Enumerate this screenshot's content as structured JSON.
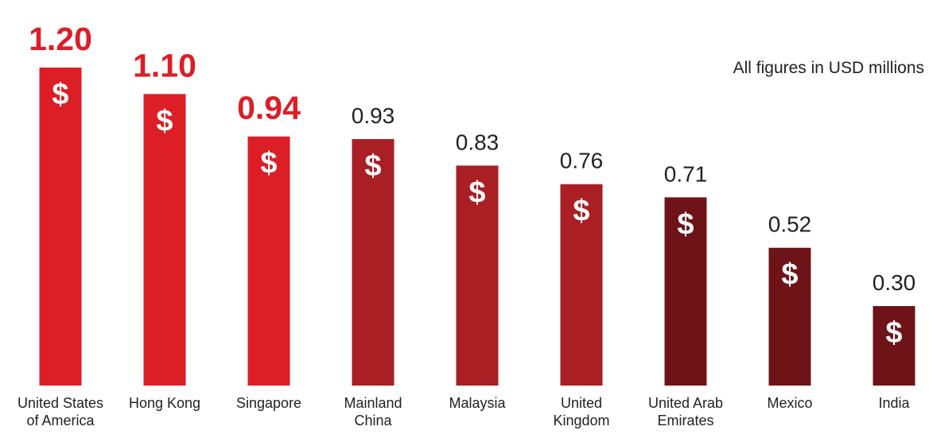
{
  "chart_data": {
    "type": "bar",
    "categories": [
      [
        "United States",
        "of America"
      ],
      [
        "Hong Kong"
      ],
      [
        "Singapore"
      ],
      [
        "Mainland",
        "China"
      ],
      [
        "Malaysia"
      ],
      [
        "United",
        "Kingdom"
      ],
      [
        "United Arab",
        "Emirates"
      ],
      [
        "Mexico"
      ],
      [
        "India"
      ]
    ],
    "values": [
      1.2,
      1.1,
      0.94,
      0.93,
      0.83,
      0.76,
      0.71,
      0.52,
      0.3
    ],
    "value_labels": [
      "1.20",
      "1.10",
      "0.94",
      "0.93",
      "0.83",
      "0.76",
      "0.71",
      "0.52",
      "0.30"
    ],
    "bar_symbol": "$",
    "bar_colors": [
      "#dc1e26",
      "#dc1e26",
      "#dc1e26",
      "#a91f24",
      "#a91f24",
      "#a91f24",
      "#6e1418",
      "#6e1418",
      "#6e1418"
    ],
    "highlight_label_color": "#dc1e26",
    "label_color": "#222222",
    "highlighted_count": 3,
    "ylim": [
      0,
      1.2
    ],
    "grid": false,
    "note": "All figures in USD millions"
  }
}
